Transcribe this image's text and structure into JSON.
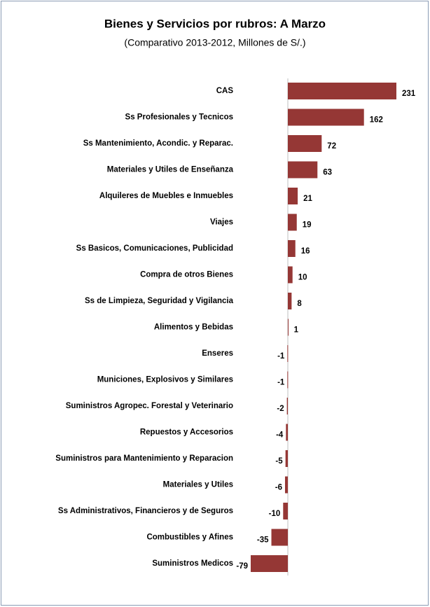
{
  "chart_data": {
    "type": "bar",
    "orientation": "horizontal",
    "title": "Bienes y Servicios por rubros: A Marzo",
    "subtitle": "(Comparativo 2013-2012, Millones de S/.)",
    "categories": [
      "CAS",
      "Ss Profesionales y Tecnicos",
      "Ss Mantenimiento, Acondic.  y  Reparac.",
      "Materiales y Utiles de Enseñanza",
      "Alquileres de Muebles e Inmuebles",
      "Viajes",
      "Ss Basicos,  Comunicaciones,  Publicidad",
      "Compra de otros Bienes",
      "Ss de Limpieza, Seguridad y Vigilancia",
      "Alimentos y Bebidas",
      "Enseres",
      "Municiones,  Explosivos  y Similares",
      "Suministros  Agropec. Forestal y Veterinario",
      "Repuestos y Accesorios",
      "Suministros para Mantenimiento y Reparacion",
      "Materiales y  Utiles",
      "Ss Administrativos, Financieros y de Seguros",
      "Combustibles y Afines",
      "Suministros Medicos"
    ],
    "values": [
      231,
      162,
      72,
      63,
      21,
      19,
      16,
      10,
      8,
      1,
      -1,
      -1,
      -2,
      -4,
      -5,
      -6,
      -10,
      -35,
      -79
    ],
    "color": "#953735"
  }
}
